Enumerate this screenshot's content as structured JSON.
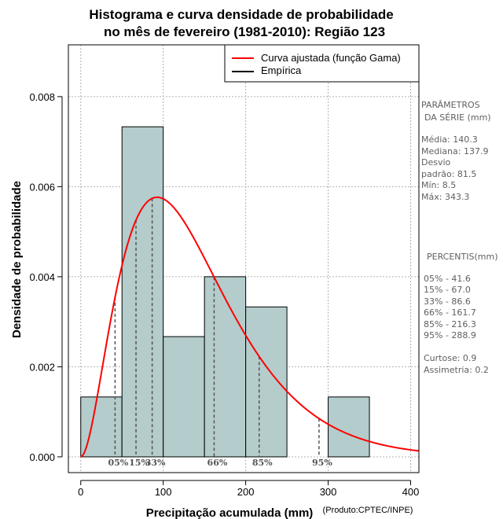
{
  "chart_data": {
    "type": "histogram",
    "title_lines": [
      "Histograma e curva densidade de probabilidade",
      "no mês de fevereiro (1981-2010): Região 123"
    ],
    "xlabel": "Precipitação acumulada (mm)",
    "ylabel": "Densidade de probabilidade",
    "credit": "(Produto:CPTEC/INPE)",
    "xlim": [
      -15,
      410
    ],
    "ylim": [
      -0.00035,
      0.00915
    ],
    "x_ticks": [
      0,
      100,
      200,
      300,
      400
    ],
    "x_tick_labels": [
      "0",
      "100",
      "200",
      "300",
      "400"
    ],
    "y_ticks": [
      0.0,
      0.002,
      0.004,
      0.006,
      0.008
    ],
    "y_tick_labels": [
      "0.000",
      "0.002",
      "0.004",
      "0.006",
      "0.008"
    ],
    "grid": true,
    "bars": [
      {
        "x0": 0,
        "x1": 50,
        "density": 0.00133
      },
      {
        "x0": 50,
        "x1": 100,
        "density": 0.00733
      },
      {
        "x0": 100,
        "x1": 150,
        "density": 0.00267
      },
      {
        "x0": 150,
        "x1": 200,
        "density": 0.004
      },
      {
        "x0": 200,
        "x1": 250,
        "density": 0.00333
      },
      {
        "x0": 250,
        "x1": 300,
        "density": 0
      },
      {
        "x0": 300,
        "x1": 350,
        "density": 0.00133
      }
    ],
    "bar_color": "#b4cccc",
    "curve": {
      "name": "Curva ajustada (função Gama)",
      "color": "#ff0000",
      "shape": 2.95,
      "scale": 47.5,
      "x_range": [
        0,
        410
      ]
    },
    "empirica": {
      "name": "Empírica",
      "color": "#000000"
    },
    "legend_position": "top-right",
    "percentile_markers": [
      {
        "label": "05%",
        "value": 41.6
      },
      {
        "label": "15%",
        "value": 67.0
      },
      {
        "label": "33%",
        "value": 86.6
      },
      {
        "label": "66%",
        "value": 161.7
      },
      {
        "label": "85%",
        "value": 216.3
      },
      {
        "label": "95%",
        "value": 288.9
      }
    ]
  },
  "side_panel": {
    "params_title_1": "PARÂMETROS",
    "params_title_2": "DA SÉRIE (mm)",
    "params": [
      "Média:  140.3",
      "Mediana:  137.9",
      "Desvio",
      "padrão:  81.5",
      "Mín:  8.5",
      "Máx:  343.3"
    ],
    "percentis_title": "PERCENTIS(mm)",
    "percentis": [
      "05% -   41.6",
      "15% -   67.0",
      "33% -   86.6",
      "66% -  161.7",
      "85% -  216.3",
      "95% -  288.9"
    ],
    "extra": [
      "Curtose:  0.9",
      "Assimetria:  0.2"
    ]
  }
}
